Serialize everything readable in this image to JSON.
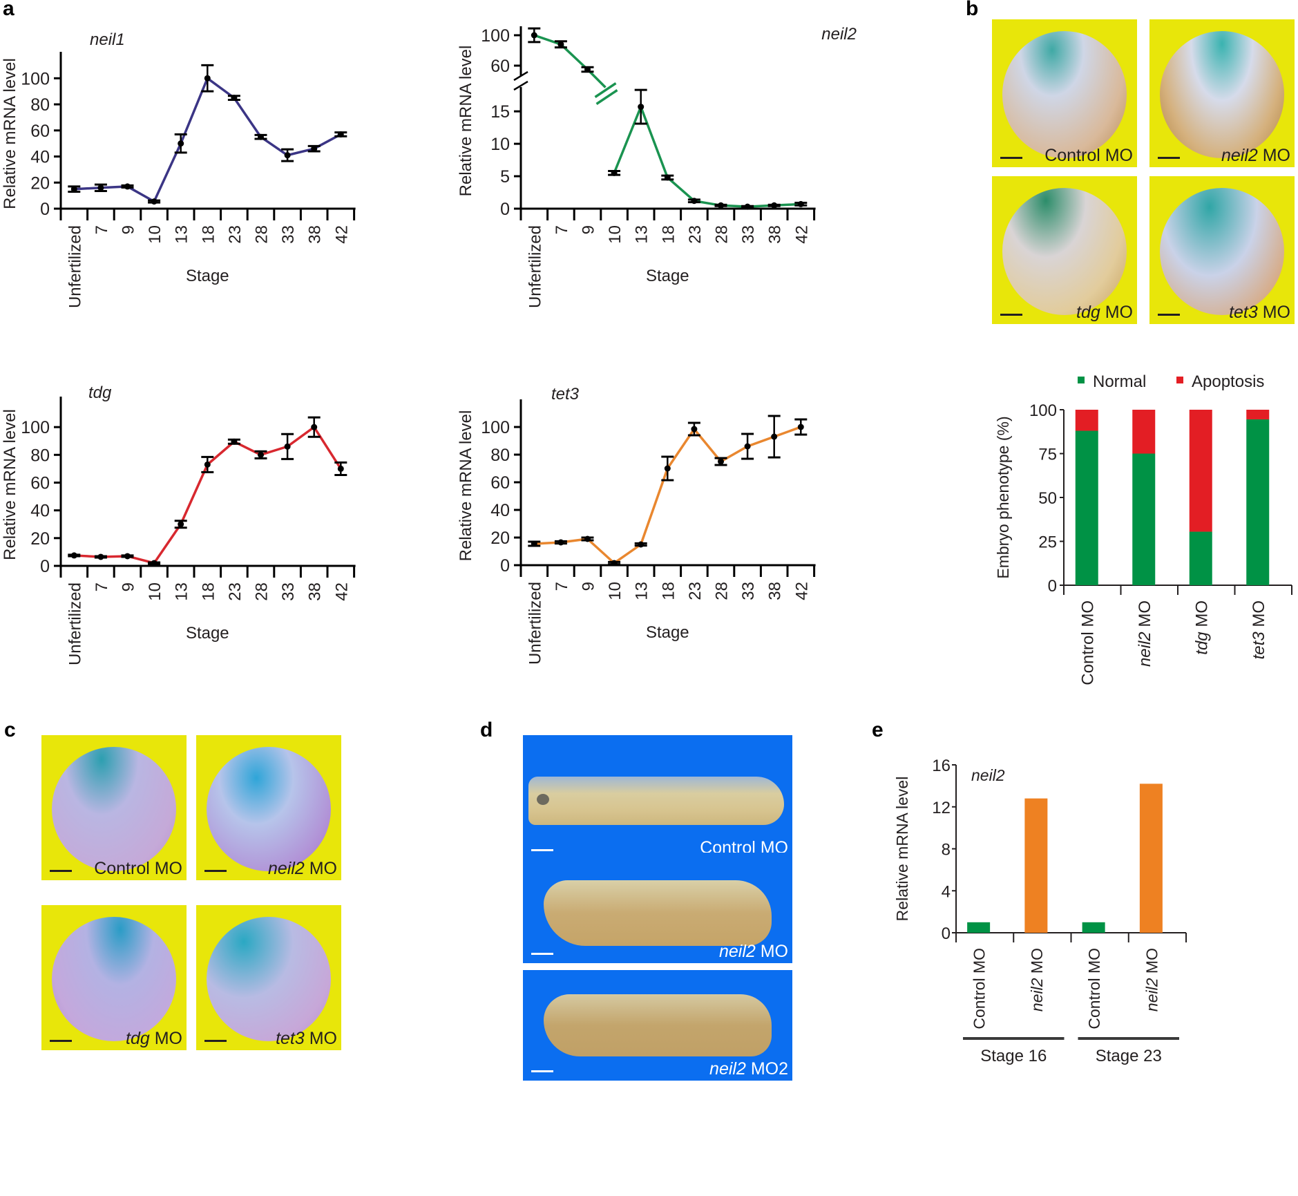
{
  "panels": {
    "a": "a",
    "b": "b",
    "c": "c",
    "d": "d",
    "e": "e"
  },
  "chart_data": [
    {
      "id": "neil1",
      "type": "line",
      "title": "neil1",
      "xlabel": "Stage",
      "ylabel": "Relative mRNA level",
      "categories": [
        "Unfertilized",
        "7",
        "9",
        "10",
        "13",
        "18",
        "23",
        "28",
        "33",
        "38",
        "42"
      ],
      "values": [
        15,
        16,
        17,
        5.5,
        50,
        100,
        85,
        55,
        41,
        46,
        57
      ],
      "errors": [
        2,
        2.5,
        0.8,
        0.8,
        7,
        10,
        1.5,
        1.5,
        4.5,
        2,
        1.5
      ],
      "ylim": [
        0,
        115
      ],
      "yticks": [
        0,
        20,
        40,
        60,
        80,
        100
      ],
      "color": "#3b3585",
      "grid": false
    },
    {
      "id": "neil2",
      "type": "line",
      "title": "neil2",
      "xlabel": "Stage",
      "ylabel": "Relative mRNA level",
      "categories": [
        "Unfertilized",
        "7",
        "9",
        "10",
        "13",
        "18",
        "23",
        "28",
        "33",
        "38",
        "42"
      ],
      "values": [
        100,
        88,
        55,
        5.5,
        15.7,
        4.8,
        1.2,
        0.5,
        0.3,
        0.5,
        0.7
      ],
      "errors": [
        9,
        4,
        3,
        0.3,
        2.6,
        0.3,
        0.2,
        0.1,
        0.1,
        0.1,
        0.2
      ],
      "axis_break": {
        "lower_ylim": [
          0,
          18
        ],
        "upper_ylim": [
          45,
          115
        ],
        "lower_yticks": [
          0,
          5,
          10,
          15
        ],
        "upper_yticks": [
          60,
          100
        ],
        "break_after_category": "9"
      },
      "color": "#1a9350",
      "grid": false
    },
    {
      "id": "tdg",
      "type": "line",
      "title": "tdg",
      "xlabel": "Stage",
      "ylabel": "Relative mRNA level",
      "categories": [
        "Unfertilized",
        "7",
        "9",
        "10",
        "13",
        "18",
        "23",
        "28",
        "33",
        "38",
        "42"
      ],
      "values": [
        7.5,
        6.5,
        7,
        2,
        30,
        73,
        89.5,
        80,
        86,
        100,
        70
      ],
      "errors": [
        0.5,
        0.5,
        0.5,
        0.5,
        2.5,
        5.5,
        1.5,
        2.5,
        9,
        7,
        4.5
      ],
      "ylim": [
        0,
        117
      ],
      "yticks": [
        0,
        20,
        40,
        60,
        80,
        100
      ],
      "color": "#d8282f",
      "grid": false
    },
    {
      "id": "tet3",
      "type": "line",
      "title": "tet3",
      "xlabel": "Stage",
      "ylabel": "Relative mRNA level",
      "categories": [
        "Unfertilized",
        "7",
        "9",
        "10",
        "13",
        "18",
        "23",
        "28",
        "33",
        "38",
        "42"
      ],
      "values": [
        15.5,
        16.5,
        19,
        1.5,
        15,
        70,
        98.5,
        75,
        86,
        93,
        100
      ],
      "errors": [
        1.5,
        0.8,
        1,
        0.8,
        0.8,
        8.5,
        4.5,
        2.5,
        9,
        15,
        5.5
      ],
      "ylim": [
        0,
        115
      ],
      "yticks": [
        0,
        20,
        40,
        60,
        80,
        100
      ],
      "color": "#e9872f",
      "grid": false
    },
    {
      "id": "phenotype",
      "type": "bar",
      "stacked": true,
      "ylabel": "Embryo phenotype (%)",
      "categories": [
        "Control MO",
        "neil2 MO",
        "tdg MO",
        "tet3 MO"
      ],
      "category_italic_prefix": [
        "",
        "neil2",
        "tdg",
        "tet3"
      ],
      "series": [
        {
          "name": "Normal",
          "values": [
            88,
            75,
            30.5,
            94.5
          ],
          "color": "#009245"
        },
        {
          "name": "Apoptosis",
          "values": [
            12,
            25,
            69.5,
            5.5
          ],
          "color": "#e31e24"
        }
      ],
      "ylim": [
        0,
        100
      ],
      "yticks": [
        0,
        25,
        50,
        75,
        100
      ],
      "legend": "top"
    },
    {
      "id": "neil2_knockdown",
      "type": "bar",
      "title": "neil2",
      "ylabel": "Relative mRNA level",
      "categories": [
        "Control MO",
        "neil2 MO",
        "Control MO",
        "neil2 MO"
      ],
      "category_italic_prefix": [
        "",
        "neil2",
        "",
        "neil2"
      ],
      "groups": [
        {
          "label": "Stage 16",
          "members": [
            0,
            1
          ]
        },
        {
          "label": "Stage 23",
          "members": [
            2,
            3
          ]
        }
      ],
      "values": [
        1,
        12.8,
        1,
        14.2
      ],
      "colors": [
        "#009245",
        "#ee8122",
        "#009245",
        "#ee8122"
      ],
      "ylim": [
        0,
        16
      ],
      "yticks": [
        0,
        4,
        8,
        12,
        16
      ]
    }
  ],
  "images_b": [
    {
      "italic": "",
      "text": "Control MO"
    },
    {
      "italic": "neil2",
      "text": " MO"
    },
    {
      "italic": "tdg",
      "text": " MO"
    },
    {
      "italic": "tet3",
      "text": " MO"
    }
  ],
  "images_c": [
    {
      "italic": "",
      "text": "Control MO"
    },
    {
      "italic": "neil2",
      "text": " MO"
    },
    {
      "italic": "tdg",
      "text": " MO"
    },
    {
      "italic": "tet3",
      "text": " MO"
    }
  ],
  "images_d": [
    {
      "italic": "",
      "text": "Control MO"
    },
    {
      "italic": "neil2",
      "text": " MO"
    },
    {
      "italic": "neil2",
      "text": " MO2"
    }
  ],
  "colors": {
    "yellow_bg": "#e8e60a",
    "blue_bg": "#0b6ef0"
  }
}
